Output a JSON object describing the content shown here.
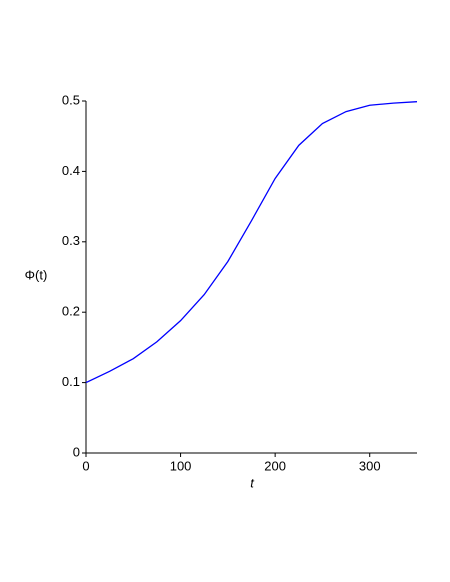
{
  "chart_data": {
    "type": "line",
    "x": [
      0,
      25,
      50,
      75,
      100,
      125,
      150,
      175,
      200,
      225,
      250,
      275,
      300,
      325,
      350
    ],
    "series": [
      {
        "color": "#0000ff",
        "values": [
          0.1,
          0.116,
          0.134,
          0.158,
          0.188,
          0.225,
          0.272,
          0.33,
          0.39,
          0.437,
          0.468,
          0.485,
          0.494,
          0.497,
          0.499
        ]
      }
    ],
    "xlabel": "t",
    "ylabel": "Φ(t)",
    "xlim": [
      0,
      350
    ],
    "ylim": [
      0,
      0.5
    ],
    "xticks": [
      0,
      100,
      200,
      300
    ],
    "yticks": [
      0,
      0.1,
      0.2,
      0.3,
      0.4,
      0.5
    ]
  }
}
